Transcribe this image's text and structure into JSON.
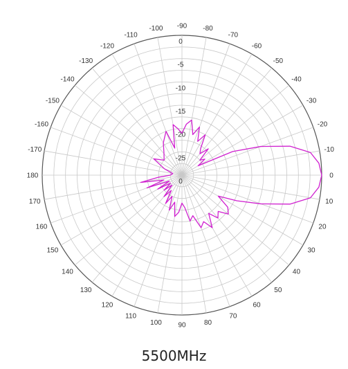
{
  "caption": "5500MHz",
  "chart_data": {
    "type": "polar",
    "angle_labels": [
      "-90",
      "-80",
      "-70",
      "-60",
      "-50",
      "-40",
      "-30",
      "-20",
      "-10",
      "0",
      "10",
      "20",
      "30",
      "40",
      "50",
      "60",
      "70",
      "80",
      "90",
      "100",
      "110",
      "120",
      "130",
      "140",
      "150",
      "160",
      "170",
      "180",
      "-170",
      "-160",
      "-150",
      "-140",
      "-130",
      "-120",
      "-110",
      "-100"
    ],
    "radial_labels": [
      "0",
      "-5",
      "-10",
      "-15",
      "-20",
      "-25",
      "0"
    ],
    "radial_range_db": [
      -30,
      0
    ],
    "grid": true,
    "series": [
      {
        "color": "#d020d0",
        "points": [
          {
            "angle": -180,
            "db": -27.5
          },
          {
            "angle": -170,
            "db": -28
          },
          {
            "angle": -160,
            "db": -26
          },
          {
            "angle": -150,
            "db": -23
          },
          {
            "angle": -140,
            "db": -25
          },
          {
            "angle": -130,
            "db": -24
          },
          {
            "angle": -120,
            "db": -22
          },
          {
            "angle": -110,
            "db": -20
          },
          {
            "angle": -105,
            "db": -24
          },
          {
            "angle": -100,
            "db": -19
          },
          {
            "angle": -95,
            "db": -20
          },
          {
            "angle": -90,
            "db": -21
          },
          {
            "angle": -85,
            "db": -19
          },
          {
            "angle": -80,
            "db": -18
          },
          {
            "angle": -75,
            "db": -21
          },
          {
            "angle": -70,
            "db": -19
          },
          {
            "angle": -65,
            "db": -22
          },
          {
            "angle": -60,
            "db": -20
          },
          {
            "angle": -55,
            "db": -23
          },
          {
            "angle": -50,
            "db": -24
          },
          {
            "angle": -45,
            "db": -22
          },
          {
            "angle": -40,
            "db": -25
          },
          {
            "angle": -35,
            "db": -24
          },
          {
            "angle": -30,
            "db": -26
          },
          {
            "angle": -25,
            "db": -18
          },
          {
            "angle": -20,
            "db": -12
          },
          {
            "angle": -15,
            "db": -6
          },
          {
            "angle": -10,
            "db": -2
          },
          {
            "angle": -5,
            "db": -0.5
          },
          {
            "angle": 0,
            "db": 0
          },
          {
            "angle": 5,
            "db": -0.5
          },
          {
            "angle": 10,
            "db": -2
          },
          {
            "angle": 15,
            "db": -6
          },
          {
            "angle": 20,
            "db": -12
          },
          {
            "angle": 25,
            "db": -17
          },
          {
            "angle": 30,
            "db": -21
          },
          {
            "angle": 35,
            "db": -18
          },
          {
            "angle": 40,
            "db": -17
          },
          {
            "angle": 45,
            "db": -19
          },
          {
            "angle": 50,
            "db": -18
          },
          {
            "angle": 55,
            "db": -20
          },
          {
            "angle": 60,
            "db": -17
          },
          {
            "angle": 65,
            "db": -19
          },
          {
            "angle": 70,
            "db": -18
          },
          {
            "angle": 75,
            "db": -21
          },
          {
            "angle": 80,
            "db": -20
          },
          {
            "angle": 85,
            "db": -23
          },
          {
            "angle": 90,
            "db": -24
          },
          {
            "angle": 95,
            "db": -22
          },
          {
            "angle": 100,
            "db": -21
          },
          {
            "angle": 105,
            "db": -24
          },
          {
            "angle": 110,
            "db": -22
          },
          {
            "angle": 115,
            "db": -25
          },
          {
            "angle": 120,
            "db": -23
          },
          {
            "angle": 125,
            "db": -26
          },
          {
            "angle": 130,
            "db": -24
          },
          {
            "angle": 135,
            "db": -27
          },
          {
            "angle": 140,
            "db": -25
          },
          {
            "angle": 145,
            "db": -27
          },
          {
            "angle": 150,
            "db": -24
          },
          {
            "angle": 155,
            "db": -27
          },
          {
            "angle": 160,
            "db": -22
          },
          {
            "angle": 165,
            "db": -26
          },
          {
            "angle": 170,
            "db": -21
          },
          {
            "angle": 175,
            "db": -25
          },
          {
            "angle": 180,
            "db": -27.5
          }
        ]
      }
    ]
  }
}
